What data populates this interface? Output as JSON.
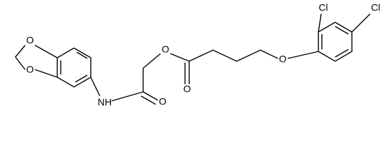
{
  "atoms": [
    {
      "label": "O"
    },
    {
      "label": "O"
    },
    {
      "label": "NH"
    },
    {
      "label": "O"
    },
    {
      "label": "O"
    },
    {
      "label": "O"
    },
    {
      "label": "O"
    },
    {
      "label": "Cl"
    },
    {
      "label": "Cl"
    }
  ]
}
